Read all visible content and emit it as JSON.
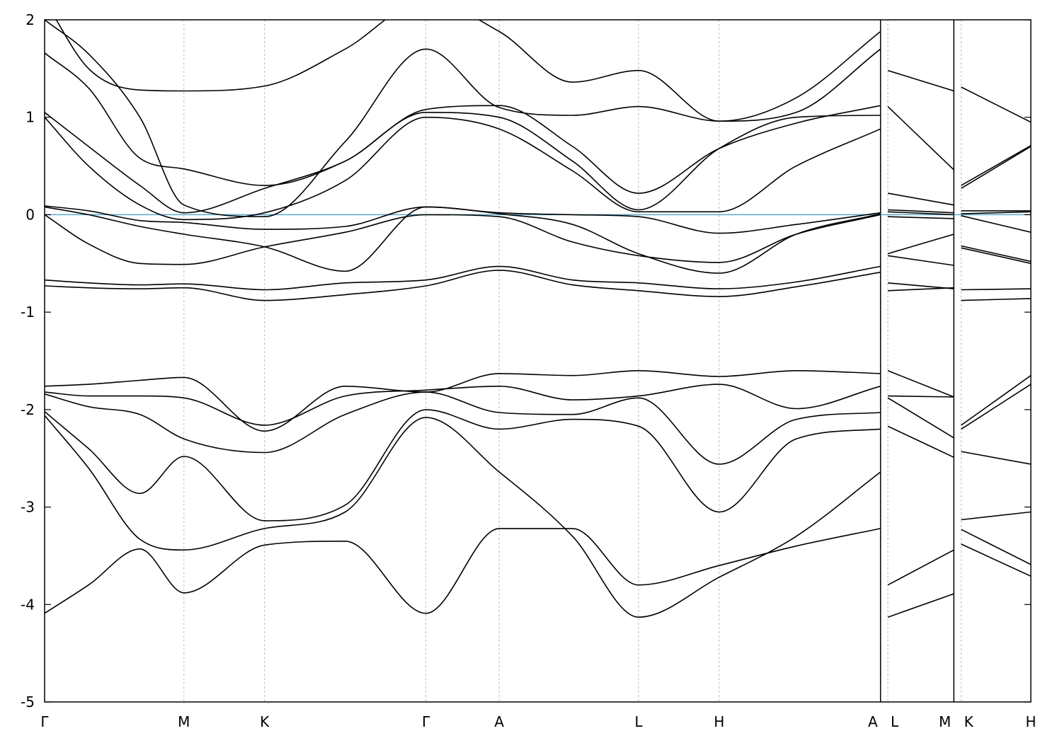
{
  "chart_data": {
    "type": "line",
    "title": "",
    "xlabel": "",
    "ylabel": "",
    "xlim": [
      0,
      2.69
    ],
    "ylim": [
      -5,
      2
    ],
    "grid": "vertical dashed lines at high-symmetry points",
    "legend": "none",
    "colors": {
      "bands": "#000000",
      "fermi": "#5aaac8",
      "grid": "#bbbbbb",
      "axis": "#000000"
    },
    "x_ticks": [
      {
        "label": "Γ",
        "x": 0.0
      },
      {
        "label": "M",
        "x": 0.38
      },
      {
        "label": "K",
        "x": 0.6
      },
      {
        "label": "Γ",
        "x": 1.04
      },
      {
        "label": "A",
        "x": 1.24
      },
      {
        "label": "L",
        "x": 1.62
      },
      {
        "label": "H",
        "x": 1.84
      },
      {
        "label": "A",
        "x": 2.28
      },
      {
        "label": "L",
        "x": 2.3
      },
      {
        "label": "M",
        "x": 2.48
      },
      {
        "label": "K",
        "x": 2.5
      },
      {
        "label": "H",
        "x": 2.69
      }
    ],
    "y_ticks": [
      2,
      1,
      0,
      -1,
      -2,
      -3,
      -4,
      -5
    ],
    "fermi_level": 0,
    "segment_breaks": [
      2.28,
      2.48
    ],
    "series": [
      {
        "x": [
          0,
          0.12,
          0.26,
          0.38,
          0.6,
          0.82,
          1.04,
          1.24,
          1.44,
          1.62,
          1.84,
          2.05,
          2.28,
          2.3,
          2.48,
          2.5,
          2.69
        ],
        "values": [
          -4.09,
          -3.8,
          -3.43,
          -3.88,
          -3.39,
          -3.35,
          -4.09,
          -3.22,
          -3.22,
          -3.8,
          -3.6,
          -3.4,
          -3.22,
          -3.8,
          -3.44,
          -3.38,
          -3.71
        ]
      },
      {
        "x": [
          0,
          0.12,
          0.26,
          0.38,
          0.6,
          0.82,
          1.04,
          1.24,
          1.44,
          1.62,
          1.84,
          2.05,
          2.28,
          2.3,
          2.48,
          2.5,
          2.69
        ],
        "values": [
          -2.06,
          -2.6,
          -3.33,
          -3.44,
          -3.22,
          -3.05,
          -2.08,
          -2.64,
          -3.3,
          -4.13,
          -3.72,
          -3.3,
          -2.64,
          -4.13,
          -3.89,
          -3.23,
          -3.59
        ]
      },
      {
        "x": [
          0,
          0.12,
          0.26,
          0.38,
          0.6,
          0.82,
          1.04,
          1.24,
          1.44,
          1.62,
          1.84,
          2.05,
          2.28,
          2.3,
          2.48,
          2.5,
          2.69
        ],
        "values": [
          -2.02,
          -2.4,
          -2.86,
          -2.48,
          -3.14,
          -2.98,
          -2.0,
          -2.2,
          -2.1,
          -2.17,
          -3.05,
          -2.3,
          -2.2,
          -2.17,
          -2.49,
          -3.13,
          -3.05
        ]
      },
      {
        "x": [
          0,
          0.12,
          0.26,
          0.38,
          0.6,
          0.82,
          1.04,
          1.24,
          1.44,
          1.62,
          1.84,
          2.05,
          2.28,
          2.3,
          2.48,
          2.5,
          2.69
        ],
        "values": [
          -1.84,
          -1.97,
          -2.05,
          -2.3,
          -2.44,
          -2.05,
          -1.82,
          -2.03,
          -2.05,
          -1.88,
          -2.56,
          -2.1,
          -2.03,
          -1.88,
          -2.29,
          -2.43,
          -2.56
        ]
      },
      {
        "x": [
          0,
          0.12,
          0.26,
          0.38,
          0.6,
          0.82,
          1.04,
          1.24,
          1.44,
          1.62,
          1.84,
          2.05,
          2.28,
          2.3,
          2.48,
          2.5,
          2.69
        ],
        "values": [
          -1.82,
          -1.86,
          -1.86,
          -1.88,
          -2.16,
          -1.86,
          -1.8,
          -1.76,
          -1.9,
          -1.86,
          -1.74,
          -1.99,
          -1.76,
          -1.86,
          -1.87,
          -2.2,
          -1.74
        ]
      },
      {
        "x": [
          0,
          0.12,
          0.26,
          0.38,
          0.6,
          0.82,
          1.04,
          1.24,
          1.44,
          1.62,
          1.84,
          2.05,
          2.28,
          2.3,
          2.48,
          2.5,
          2.69
        ],
        "values": [
          -1.76,
          -1.74,
          -1.7,
          -1.67,
          -2.22,
          -1.76,
          -1.82,
          -1.63,
          -1.65,
          -1.6,
          -1.66,
          -1.6,
          -1.63,
          -1.6,
          -1.87,
          -2.16,
          -1.65
        ]
      },
      {
        "x": [
          0,
          0.12,
          0.26,
          0.38,
          0.6,
          0.82,
          1.04,
          1.24,
          1.44,
          1.62,
          1.84,
          2.05,
          2.28,
          2.3,
          2.48,
          2.5,
          2.69
        ],
        "values": [
          -0.73,
          -0.75,
          -0.76,
          -0.75,
          -0.88,
          -0.82,
          -0.73,
          -0.57,
          -0.72,
          -0.78,
          -0.84,
          -0.74,
          -0.59,
          -0.78,
          -0.75,
          -0.88,
          -0.86
        ]
      },
      {
        "x": [
          0,
          0.12,
          0.26,
          0.38,
          0.6,
          0.82,
          1.04,
          1.24,
          1.44,
          1.62,
          1.84,
          2.05,
          2.28,
          2.3,
          2.48,
          2.5,
          2.69
        ],
        "values": [
          -0.67,
          -0.7,
          -0.72,
          -0.71,
          -0.77,
          -0.7,
          -0.67,
          -0.53,
          -0.67,
          -0.7,
          -0.76,
          -0.69,
          -0.53,
          -0.7,
          -0.76,
          -0.77,
          -0.76
        ]
      },
      {
        "x": [
          0,
          0.12,
          0.26,
          0.38,
          0.6,
          0.82,
          1.04,
          1.24,
          1.44,
          1.62,
          1.84,
          2.05,
          2.28,
          2.3,
          2.48,
          2.5,
          2.69
        ],
        "values": [
          0.0,
          -0.3,
          -0.5,
          -0.51,
          -0.33,
          -0.18,
          0.0,
          -0.02,
          -0.28,
          -0.42,
          -0.49,
          -0.2,
          0.0,
          -0.42,
          -0.52,
          -0.34,
          -0.5
        ]
      },
      {
        "x": [
          0,
          0.12,
          0.26,
          0.38,
          0.6,
          0.82,
          1.04,
          1.24,
          1.44,
          1.62,
          1.84,
          2.05,
          2.28,
          2.3,
          2.48,
          2.5,
          2.69
        ],
        "values": [
          0.08,
          0.0,
          -0.12,
          -0.2,
          -0.33,
          -0.58,
          0.08,
          0.01,
          -0.1,
          -0.4,
          -0.6,
          -0.2,
          0.01,
          -0.4,
          -0.2,
          -0.32,
          -0.48
        ]
      },
      {
        "x": [
          0,
          0.12,
          0.26,
          0.38,
          0.6,
          0.82,
          1.04,
          1.24,
          1.44,
          1.62,
          1.84,
          2.05,
          2.28,
          2.3,
          2.48,
          2.5,
          2.69
        ],
        "values": [
          0.09,
          0.04,
          -0.06,
          -0.08,
          -0.15,
          -0.12,
          0.08,
          0.02,
          0.0,
          -0.02,
          -0.19,
          -0.1,
          0.02,
          -0.02,
          -0.04,
          -0.01,
          -0.18
        ]
      },
      {
        "x": [
          0,
          0.12,
          0.26,
          0.38,
          0.6,
          0.82,
          1.04,
          1.24,
          1.44,
          1.62,
          1.84,
          2.05,
          2.28,
          2.3,
          2.48,
          2.5,
          2.69
        ],
        "values": [
          1.0,
          0.5,
          0.1,
          -0.05,
          0.02,
          0.35,
          1.0,
          0.88,
          0.45,
          0.03,
          0.03,
          0.5,
          0.88,
          0.03,
          0.0,
          0.01,
          0.03
        ]
      },
      {
        "x": [
          0,
          0.12,
          0.26,
          0.38,
          0.6,
          0.82,
          1.04,
          1.24,
          1.44,
          1.62,
          1.84,
          2.05,
          2.28,
          2.3,
          2.48,
          2.5,
          2.69
        ],
        "values": [
          1.05,
          0.7,
          0.3,
          0.02,
          0.27,
          0.55,
          1.05,
          1.0,
          0.55,
          0.05,
          0.68,
          1.0,
          1.02,
          0.05,
          0.02,
          0.04,
          0.04
        ]
      },
      {
        "x": [
          0,
          0.12,
          0.26,
          0.38,
          0.6,
          0.82,
          1.04,
          1.24,
          1.44,
          1.62,
          1.84,
          2.05,
          2.28,
          2.3,
          2.48,
          2.5,
          2.69
        ],
        "values": [
          1.66,
          1.3,
          0.58,
          0.47,
          0.3,
          0.55,
          1.08,
          1.12,
          0.7,
          0.22,
          0.68,
          0.94,
          1.12,
          0.22,
          0.1,
          0.27,
          0.7
        ]
      },
      {
        "x": [
          0,
          0.12,
          0.26,
          0.38,
          0.6,
          0.82,
          1.04,
          1.24,
          1.44,
          1.62,
          1.84,
          2.05,
          2.28,
          2.3,
          2.48,
          2.5,
          2.69
        ],
        "values": [
          2.0,
          1.65,
          1.0,
          0.1,
          -0.02,
          0.75,
          1.7,
          1.1,
          1.02,
          1.11,
          0.96,
          1.05,
          1.7,
          1.11,
          0.46,
          0.3,
          0.71
        ]
      },
      {
        "x": [
          0,
          0.12,
          0.26,
          0.38,
          0.6,
          0.82,
          1.04,
          1.24,
          1.44,
          1.62,
          1.84,
          2.05,
          2.28,
          2.3,
          2.48,
          2.5,
          2.69
        ],
        "values": [
          2.2,
          1.5,
          1.28,
          1.27,
          1.32,
          1.7,
          2.2,
          1.88,
          1.36,
          1.48,
          0.96,
          1.2,
          1.88,
          1.48,
          1.27,
          1.31,
          0.95
        ]
      }
    ]
  }
}
